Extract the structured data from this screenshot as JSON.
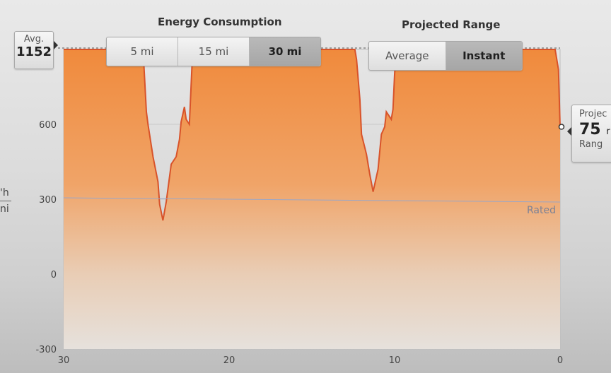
{
  "energy_title": "Energy Consumption",
  "range_title": "Projected Range",
  "distance_tabs": [
    {
      "label": "5 mi",
      "active": false
    },
    {
      "label": "15 mi",
      "active": false
    },
    {
      "label": "30 mi",
      "active": true
    }
  ],
  "range_tabs": [
    {
      "label": "Average",
      "active": false
    },
    {
      "label": "Instant",
      "active": true
    }
  ],
  "avg": {
    "label": "Avg.",
    "value": "1152"
  },
  "projected": {
    "label": "Projec",
    "value": "75",
    "unit_fragment": "r",
    "sublabel": "Rang"
  },
  "unit_fragments": [
    "'h",
    "ni"
  ],
  "colors": {
    "accent": "#f08a3c",
    "line": "#d8532a"
  },
  "chart_data": {
    "type": "area",
    "x_label": "",
    "y_label": "",
    "xlim": [
      30,
      0
    ],
    "ylim": [
      -300,
      900
    ],
    "y_ticks": [
      600,
      300,
      0,
      -300
    ],
    "x_ticks": [
      30,
      20,
      10,
      0
    ],
    "rated_label": "Rated",
    "rated_value": 300,
    "avg_value": 1152,
    "x": [
      30,
      25.2,
      25.0,
      24.9,
      24.6,
      24.3,
      24.2,
      24.0,
      23.8,
      23.5,
      23.2,
      23.0,
      22.9,
      22.7,
      22.6,
      22.4,
      22.2,
      17.7,
      17.7,
      17.6,
      17.4,
      16.9,
      12.4,
      12.3,
      12.1,
      12.0,
      11.7,
      11.5,
      11.3,
      11.0,
      10.8,
      10.6,
      10.5,
      10.2,
      10.1,
      10.0,
      9.9,
      0.3,
      0.1,
      0
    ],
    "y": [
      900,
      900,
      650,
      600,
      470,
      370,
      280,
      215,
      290,
      440,
      470,
      540,
      610,
      670,
      620,
      600,
      900,
      900,
      860,
      860,
      880,
      900,
      900,
      860,
      700,
      560,
      480,
      400,
      330,
      420,
      560,
      590,
      650,
      620,
      660,
      800,
      900,
      900,
      820,
      590
    ]
  }
}
